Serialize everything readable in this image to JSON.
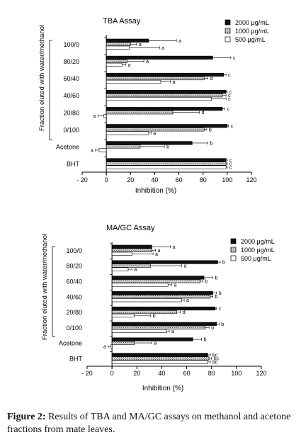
{
  "caption": {
    "label": "Figure 2:",
    "text": "Results of TBA and MA/GC assays on methanol and acetone fractions from mate leaves."
  },
  "colors": {
    "dark": "#111111",
    "mid": "#d6d6d6",
    "light": "#ffffff"
  },
  "chart_data": [
    {
      "type": "bar",
      "orientation": "horizontal",
      "title": "TBA Assay",
      "xlabel": "Inhibition (%)",
      "ylabel": "Fraction eluted with water/methanol",
      "xlim": [
        -20,
        120
      ],
      "xticks": [
        -20,
        0,
        20,
        40,
        60,
        80,
        100,
        120
      ],
      "xtick_labels": [
        "- 20",
        "0",
        "20",
        "40",
        "60",
        "80",
        "100",
        "120"
      ],
      "categories": [
        "100/0",
        "80/20",
        "60/40",
        "40/60",
        "20/80",
        "0/100",
        "Acetone",
        "BHT"
      ],
      "series": [
        {
          "name": "2000 μg/mL",
          "fill": "dark",
          "values": [
            35,
            88,
            97,
            99,
            96,
            100,
            71,
            99
          ],
          "errors": [
            23,
            15,
            2,
            1,
            2,
            1,
            13,
            1
          ],
          "labels": [
            "a",
            "c",
            "c",
            "c",
            "c",
            "c",
            "b",
            "c"
          ]
        },
        {
          "name": "1000 μg/mL",
          "fill": "mid",
          "values": [
            20,
            17,
            81,
            96,
            55,
            81,
            28,
            99
          ],
          "errors": [
            5,
            14,
            3,
            3,
            22,
            2,
            20,
            1
          ],
          "labels": [
            "a",
            "a",
            "d",
            "c",
            "d",
            "b",
            "b",
            "c"
          ]
        },
        {
          "name": "500 μg/mL",
          "fill": "light",
          "values": [
            19,
            13,
            45,
            87,
            -2,
            35,
            -6,
            99
          ],
          "errors": [
            25,
            3,
            8,
            12,
            5,
            2,
            3,
            1
          ],
          "labels": [
            "a",
            "a",
            "a",
            "c",
            "a",
            "a",
            "a",
            "c"
          ]
        }
      ],
      "legend": "top-right"
    },
    {
      "type": "bar",
      "orientation": "horizontal",
      "title": "MA/GC Assay",
      "xlabel": "Inhibition (%)",
      "ylabel": "Fraction eluted with water/methanol",
      "xlim": [
        -20,
        120
      ],
      "xticks": [
        -20,
        0,
        20,
        40,
        60,
        80,
        100,
        120
      ],
      "xtick_labels": [
        "- 20",
        "0",
        "20",
        "40",
        "60",
        "80",
        "100",
        "120"
      ],
      "categories": [
        "100/0",
        "80/20",
        "60/40",
        "40/60",
        "20/80",
        "0/100",
        "Acetone",
        "BHT"
      ],
      "series": [
        {
          "name": "2000 μg/mL",
          "fill": "dark",
          "values": [
            32,
            85,
            74,
            81,
            83,
            84,
            65,
            77
          ],
          "errors": [
            15,
            2,
            7,
            3,
            1,
            2,
            7,
            2
          ],
          "labels": [
            "a",
            "b",
            "b",
            "b",
            "c",
            "b",
            "b",
            "bc"
          ]
        },
        {
          "name": "1000 μg/mL",
          "fill": "mid",
          "values": [
            32,
            31,
            71,
            79,
            52,
            75,
            18,
            78
          ],
          "errors": [
            3,
            25,
            2,
            2,
            3,
            3,
            14,
            2
          ],
          "labels": [
            "a",
            "a",
            "b",
            "b",
            "d",
            "b",
            "a",
            "bc"
          ]
        },
        {
          "name": "500 μg/mL",
          "fill": "light",
          "values": [
            16,
            13,
            45,
            56,
            18,
            44,
            -1,
            77
          ],
          "errors": [
            17,
            3,
            3,
            2,
            13,
            2,
            2,
            2
          ],
          "labels": [
            "a",
            "a",
            "a",
            "a",
            "b",
            "a",
            "a",
            "bc"
          ]
        }
      ],
      "legend": "top-right"
    }
  ]
}
